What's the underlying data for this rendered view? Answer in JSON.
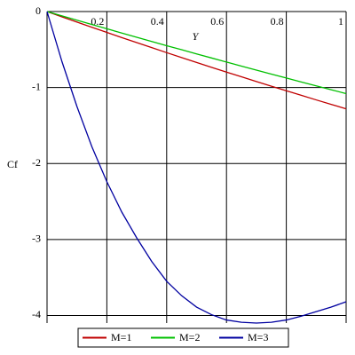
{
  "chart_data": {
    "type": "line",
    "x_label": "Y",
    "y_label": "Cf",
    "x": [
      0,
      0.05,
      0.1,
      0.15,
      0.2,
      0.25,
      0.3,
      0.35,
      0.4,
      0.45,
      0.5,
      0.55,
      0.6,
      0.65,
      0.7,
      0.75,
      0.8,
      0.85,
      0.9,
      0.95,
      1
    ],
    "series": [
      {
        "name": "M=1",
        "color": "#c00000",
        "values": [
          0,
          -0.07,
          -0.139,
          -0.207,
          -0.275,
          -0.343,
          -0.409,
          -0.475,
          -0.541,
          -0.606,
          -0.67,
          -0.734,
          -0.797,
          -0.859,
          -0.921,
          -0.983,
          -1.043,
          -1.103,
          -1.163,
          -1.222,
          -1.28
        ]
      },
      {
        "name": "M=2",
        "color": "#00c000",
        "values": [
          0,
          -0.057,
          -0.114,
          -0.171,
          -0.227,
          -0.283,
          -0.339,
          -0.394,
          -0.449,
          -0.503,
          -0.558,
          -0.611,
          -0.665,
          -0.718,
          -0.771,
          -0.823,
          -0.875,
          -0.927,
          -0.978,
          -1.029,
          -1.08
        ]
      },
      {
        "name": "M=3",
        "color": "#0000a0",
        "values": [
          0,
          -0.66,
          -1.25,
          -1.78,
          -2.24,
          -2.64,
          -2.98,
          -3.29,
          -3.55,
          -3.74,
          -3.89,
          -3.99,
          -4.06,
          -4.09,
          -4.1,
          -4.09,
          -4.06,
          -4.01,
          -3.95,
          -3.89,
          -3.82
        ]
      }
    ],
    "xlim": [
      0,
      1
    ],
    "xticks": [
      0.2,
      0.4,
      0.6,
      0.8,
      1
    ],
    "ylim": [
      -4.1,
      0
    ],
    "yticks": [
      0,
      -1,
      -2,
      -3,
      -4
    ],
    "grid": true,
    "legend": "bottom"
  }
}
